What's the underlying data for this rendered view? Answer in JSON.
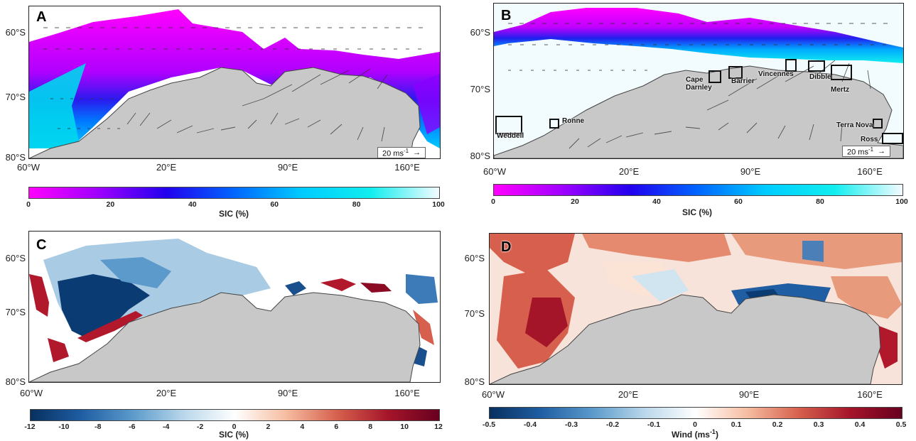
{
  "panels": {
    "A": {
      "letter": "A"
    },
    "B": {
      "letter": "B",
      "regions": [
        "Weddell",
        "Ronne",
        "Cape Darnley",
        "Barrier",
        "Vincennes",
        "Dibble",
        "Mertz",
        "Terra Nova",
        "Ross"
      ]
    },
    "C": {
      "letter": "C"
    },
    "D": {
      "letter": "D"
    }
  },
  "axes": {
    "lat_labels": [
      "60°S",
      "70°S",
      "80°S"
    ],
    "lon_labels": [
      "60°W",
      "20°E",
      "90°E",
      "160°E"
    ]
  },
  "wind_legend": {
    "text": "20 ms",
    "sup": "-1",
    "arrow": "→"
  },
  "colorbars": {
    "sic": {
      "label": "SIC (%)",
      "ticks": [
        "0",
        "20",
        "40",
        "60",
        "80",
        "100"
      ],
      "colors": [
        "#ff00ff",
        "#a000ff",
        "#2200ee",
        "#0066ff",
        "#00ccff",
        "#11eeee",
        "#f4fbff"
      ]
    },
    "sic_diff": {
      "label": "SIC (%)",
      "ticks": [
        "-12",
        "-10",
        "-8",
        "-6",
        "-4",
        "-2",
        "0",
        "2",
        "4",
        "6",
        "8",
        "10",
        "12"
      ],
      "colors": [
        "#07305f",
        "#1f5ea3",
        "#5b9acb",
        "#b9d7ea",
        "#ffffff",
        "#f6bda1",
        "#d6604d",
        "#a5152a",
        "#67001f"
      ]
    },
    "wind_diff": {
      "label": "Wind (ms",
      "label_sup": "-1",
      "label_end": ")",
      "ticks": [
        "-0.5",
        "-0.4",
        "-0.3",
        "-0.2",
        "-0.1",
        "0",
        "0.1",
        "0.2",
        "0.3",
        "0.4",
        "0.5"
      ],
      "colors": [
        "#07305f",
        "#1f5ea3",
        "#5b9acb",
        "#b9d7ea",
        "#ffffff",
        "#f6bda1",
        "#d6604d",
        "#a5152a",
        "#67001f"
      ]
    }
  },
  "colors": {
    "land": "#c8c8c8",
    "coast": "#444444"
  }
}
